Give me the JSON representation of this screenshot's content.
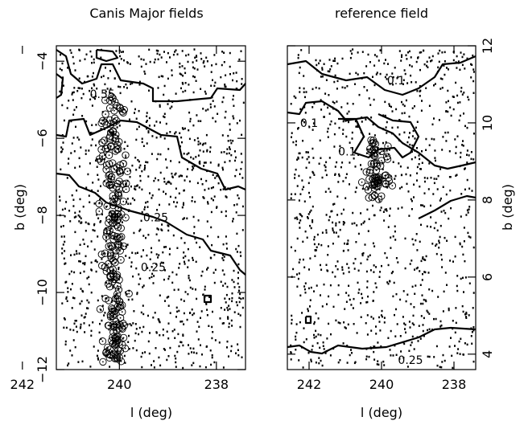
{
  "chart_data": [
    {
      "type": "scatter",
      "title": "Canis Major fields",
      "xlabel": "l (deg)",
      "ylabel": "b (deg)",
      "xlim": [
        241.3,
        237.4
      ],
      "ylim": [
        -12,
        -3.6
      ],
      "x_ticks": [
        242,
        240,
        238
      ],
      "y_ticks": [
        -4,
        -6,
        -8,
        -10,
        -12
      ],
      "y_axis_side": "left",
      "contour_labels": [
        {
          "text": "0.55",
          "l": 240.35,
          "b": -4.95
        },
        {
          "text": "0.25",
          "l": 239.25,
          "b": -8.15
        },
        {
          "text": "0.25",
          "l": 239.3,
          "b": -9.45
        }
      ],
      "circled_stars_region": {
        "l_center": 240.1,
        "b_from": -4.9,
        "b_to": -11.9
      },
      "grid": false
    },
    {
      "type": "scatter",
      "title": "reference field",
      "xlabel": "l (deg)",
      "ylabel": "b (deg)",
      "xlim": [
        242.6,
        237.4
      ],
      "ylim": [
        3.6,
        12
      ],
      "x_ticks": [
        242,
        240,
        238
      ],
      "y_ticks": [
        4,
        6,
        8,
        10,
        12
      ],
      "y_axis_side": "right",
      "contour_labels": [
        {
          "text": "0.1",
          "l": 239.6,
          "b": 11.0
        },
        {
          "text": "0.1",
          "l": 242.0,
          "b": 9.9
        },
        {
          "text": "0.1",
          "l": 240.95,
          "b": 9.15
        },
        {
          "text": "0.25",
          "l": 239.2,
          "b": 3.75
        }
      ],
      "circled_stars_region": {
        "l_center": 240.1,
        "b_from": 8.0,
        "b_to": 9.6
      },
      "grid": false
    }
  ]
}
